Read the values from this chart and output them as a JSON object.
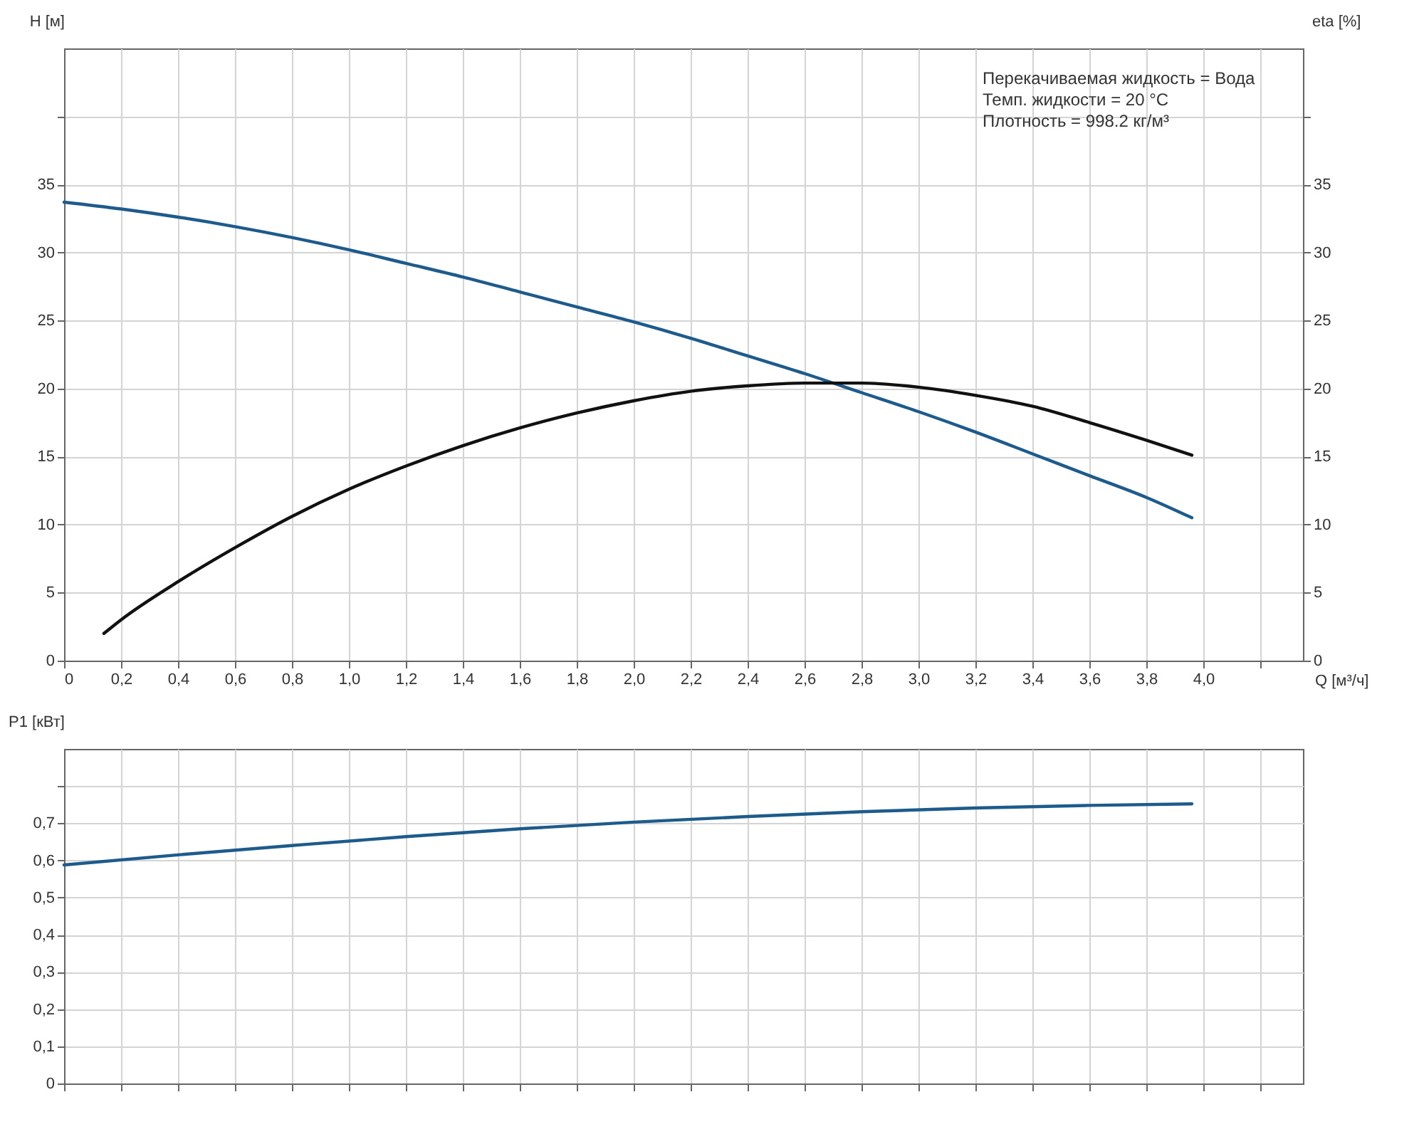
{
  "chart_data": [
    {
      "type": "line",
      "xlabel": "Q [м³/ч]",
      "ylabel": "H [м]",
      "y2label": "eta [%]",
      "annotations": [
        "Перекачиваемая жидкость = Вода",
        "Темп. жидкости = 20 °C",
        "Плотность = 998.2 кг/м³"
      ],
      "xlim": [
        0,
        4.35
      ],
      "xticks": [
        0,
        {
          "value": 0.2,
          "label": "0,2"
        },
        {
          "value": 0.4,
          "label": "0,4"
        },
        {
          "value": 0.6,
          "label": "0,6"
        },
        {
          "value": 0.8,
          "label": "0,8"
        },
        {
          "value": 1.0,
          "label": "1,0"
        },
        {
          "value": 1.2,
          "label": "1,2"
        },
        {
          "value": 1.4,
          "label": "1,4"
        },
        {
          "value": 1.6,
          "label": "1,6"
        },
        {
          "value": 1.8,
          "label": "1,8"
        },
        {
          "value": 2.0,
          "label": "2,0"
        },
        {
          "value": 2.2,
          "label": "2,2"
        },
        {
          "value": 2.4,
          "label": "2,4"
        },
        {
          "value": 2.6,
          "label": "2,6"
        },
        {
          "value": 2.8,
          "label": "2,8"
        },
        {
          "value": 3.0,
          "label": "3,0"
        },
        {
          "value": 3.2,
          "label": "3,2"
        },
        {
          "value": 3.4,
          "label": "3,4"
        },
        {
          "value": 3.6,
          "label": "3,6"
        },
        {
          "value": 3.8,
          "label": "3,8"
        },
        {
          "value": 4.0,
          "label": "4,0"
        },
        {
          "value": 4.2,
          "label": null
        }
      ],
      "ylim": [
        0,
        45
      ],
      "yticks": [
        0,
        5,
        10,
        15,
        20,
        25,
        30,
        35,
        {
          "value": 40,
          "label": null
        }
      ],
      "y2lim": [
        0,
        45
      ],
      "y2ticks": [
        0,
        5,
        10,
        15,
        20,
        25,
        30,
        35,
        {
          "value": 40,
          "label": null
        }
      ],
      "grid": true,
      "series": [
        {
          "color": "#1d5b8c",
          "x": [
            0,
            0.2,
            0.4,
            0.6,
            0.8,
            1.0,
            1.2,
            1.4,
            1.6,
            1.8,
            2.0,
            2.2,
            2.4,
            2.6,
            2.8,
            3.0,
            3.2,
            3.4,
            3.6,
            3.8,
            3.96
          ],
          "values": [
            33.7,
            33.2,
            32.6,
            31.9,
            31.1,
            30.2,
            29.2,
            28.2,
            27.1,
            26.0,
            24.9,
            23.7,
            22.4,
            21.1,
            19.7,
            18.3,
            16.8,
            15.2,
            13.6,
            12.0,
            10.5
          ]
        },
        {
          "color": "#111111",
          "axis": "y2",
          "x": [
            0.14,
            0.2,
            0.4,
            0.6,
            0.8,
            1.0,
            1.2,
            1.4,
            1.6,
            1.8,
            2.0,
            2.2,
            2.4,
            2.6,
            2.8,
            3.0,
            3.2,
            3.4,
            3.6,
            3.8,
            3.96
          ],
          "values": [
            2.0,
            3.0,
            5.8,
            8.3,
            10.6,
            12.6,
            14.3,
            15.8,
            17.1,
            18.2,
            19.1,
            19.8,
            20.2,
            20.4,
            20.4,
            20.1,
            19.5,
            18.7,
            17.5,
            16.2,
            15.1
          ]
        }
      ]
    },
    {
      "type": "line",
      "ylabel": "P1 [кВт]",
      "xlim": [
        0,
        4.35
      ],
      "xticks": [
        {
          "value": 0,
          "label": null
        },
        {
          "value": 0.2,
          "label": null
        },
        {
          "value": 0.4,
          "label": null
        },
        {
          "value": 0.6,
          "label": null
        },
        {
          "value": 0.8,
          "label": null
        },
        {
          "value": 1.0,
          "label": null
        },
        {
          "value": 1.2,
          "label": null
        },
        {
          "value": 1.4,
          "label": null
        },
        {
          "value": 1.6,
          "label": null
        },
        {
          "value": 1.8,
          "label": null
        },
        {
          "value": 2.0,
          "label": null
        },
        {
          "value": 2.2,
          "label": null
        },
        {
          "value": 2.4,
          "label": null
        },
        {
          "value": 2.6,
          "label": null
        },
        {
          "value": 2.8,
          "label": null
        },
        {
          "value": 3.0,
          "label": null
        },
        {
          "value": 3.2,
          "label": null
        },
        {
          "value": 3.4,
          "label": null
        },
        {
          "value": 3.6,
          "label": null
        },
        {
          "value": 3.8,
          "label": null
        },
        {
          "value": 4.0,
          "label": null
        },
        {
          "value": 4.2,
          "label": null
        }
      ],
      "ylim": [
        0,
        0.9
      ],
      "yticks": [
        0,
        {
          "value": 0.1,
          "label": "0,1"
        },
        {
          "value": 0.2,
          "label": "0,2"
        },
        {
          "value": 0.3,
          "label": "0,3"
        },
        {
          "value": 0.4,
          "label": "0,4"
        },
        {
          "value": 0.5,
          "label": "0,5"
        },
        {
          "value": 0.6,
          "label": "0,6"
        },
        {
          "value": 0.7,
          "label": "0,7"
        },
        {
          "value": 0.8,
          "label": null
        }
      ],
      "tick_labels": "y",
      "grid": true,
      "series": [
        {
          "color": "#1d5b8c",
          "x": [
            0,
            0.4,
            0.8,
            1.2,
            1.6,
            2.0,
            2.4,
            2.8,
            3.2,
            3.6,
            3.96
          ],
          "values": [
            0.588,
            0.615,
            0.64,
            0.664,
            0.685,
            0.703,
            0.718,
            0.731,
            0.741,
            0.748,
            0.752
          ]
        }
      ]
    }
  ]
}
